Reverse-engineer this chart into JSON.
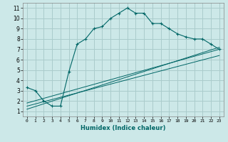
{
  "title": "",
  "xlabel": "Humidex (Indice chaleur)",
  "ylabel": "",
  "xlim": [
    -0.5,
    23.5
  ],
  "ylim": [
    0.5,
    11.5
  ],
  "xticks": [
    0,
    1,
    2,
    3,
    4,
    5,
    6,
    7,
    8,
    9,
    10,
    11,
    12,
    13,
    14,
    15,
    16,
    17,
    18,
    19,
    20,
    21,
    22,
    23
  ],
  "yticks": [
    1,
    2,
    3,
    4,
    5,
    6,
    7,
    8,
    9,
    10,
    11
  ],
  "bg_color": "#cce8e8",
  "grid_color": "#aacccc",
  "line_color": "#006666",
  "main_series_x": [
    0,
    1,
    2,
    3,
    4,
    5,
    6,
    7,
    8,
    9,
    10,
    11,
    12,
    13,
    14,
    15,
    16,
    17,
    18,
    19,
    20,
    21,
    22,
    23
  ],
  "main_series_y": [
    3.3,
    3.0,
    2.0,
    1.5,
    1.5,
    4.8,
    7.5,
    8.0,
    9.0,
    9.2,
    10.0,
    10.5,
    11.0,
    10.5,
    10.5,
    9.5,
    9.5,
    9.0,
    8.5,
    8.2,
    8.0,
    8.0,
    7.5,
    7.0
  ],
  "trend1_x": [
    0,
    23
  ],
  "trend1_y": [
    1.8,
    7.0
  ],
  "trend2_x": [
    0,
    23
  ],
  "trend2_y": [
    1.5,
    6.4
  ],
  "trend3_x": [
    0,
    23
  ],
  "trend3_y": [
    1.2,
    7.2
  ]
}
